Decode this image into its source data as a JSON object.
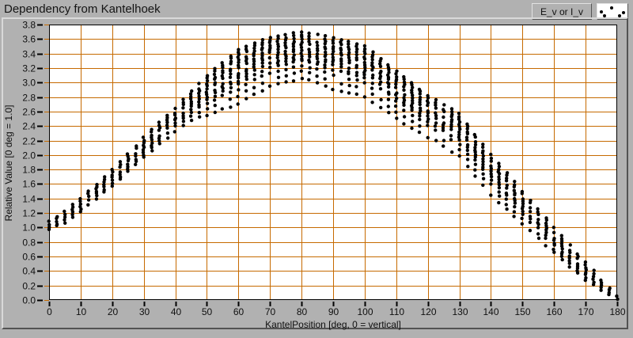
{
  "window": {
    "title": "Dependency from Kantelhoek"
  },
  "legend": {
    "label": "E_v or I_v",
    "glyph": "scatter-dots-sample"
  },
  "colors": {
    "background": "#b1b1b1",
    "plot_background": "#ffffff",
    "grid": "#c66a00",
    "points": "#000000",
    "frame": "#000000",
    "text": "#101010"
  },
  "axes": {
    "x_tick_labels": [
      "0",
      "10",
      "20",
      "30",
      "40",
      "50",
      "60",
      "70",
      "80",
      "90",
      "100",
      "110",
      "120",
      "130",
      "140",
      "150",
      "160",
      "170",
      "180"
    ],
    "y_tick_labels": [
      "0.0",
      "0.2",
      "0.4",
      "0.6",
      "0.8",
      "1.0",
      "1.2",
      "1.4",
      "1.6",
      "1.8",
      "2.0",
      "2.2",
      "2.4",
      "2.6",
      "2.8",
      "3.0",
      "3.2",
      "3.4",
      "3.6",
      "3.8"
    ]
  },
  "chart_data": {
    "type": "scatter",
    "title": "Dependency from Kantelhoek",
    "series_name": "E_v or I_v",
    "xlabel": "KantelPosition [deg, 0 = vertical]",
    "ylabel": "Relative Value [0 deg = 1.0]",
    "xlim": [
      0,
      180
    ],
    "ylim": [
      0.0,
      3.8
    ],
    "x_tick_step": 10,
    "y_tick_step": 0.2,
    "grid": true,
    "legend_position": "top-right",
    "description": "At each tilt angle (2.5 deg steps) a vertical cluster of measured points spans y_min..y_max; dense near the top, sparser toward the bottom.",
    "x": [
      0,
      2.5,
      5,
      7.5,
      10,
      12.5,
      15,
      17.5,
      20,
      22.5,
      25,
      27.5,
      30,
      32.5,
      35,
      37.5,
      40,
      42.5,
      45,
      47.5,
      50,
      52.5,
      55,
      57.5,
      60,
      62.5,
      65,
      67.5,
      70,
      72.5,
      75,
      77.5,
      80,
      82.5,
      85,
      87.5,
      90,
      92.5,
      95,
      97.5,
      100,
      102.5,
      105,
      107.5,
      110,
      112.5,
      115,
      117.5,
      120,
      122.5,
      125,
      127.5,
      130,
      132.5,
      135,
      137.5,
      140,
      142.5,
      145,
      147.5,
      150,
      152.5,
      155,
      157.5,
      160,
      162.5,
      165,
      167.5,
      170,
      172.5,
      175,
      177.5,
      180
    ],
    "y_max": [
      1.08,
      1.15,
      1.22,
      1.31,
      1.4,
      1.5,
      1.6,
      1.7,
      1.8,
      1.91,
      2.02,
      2.13,
      2.24,
      2.35,
      2.45,
      2.55,
      2.65,
      2.77,
      2.88,
      2.99,
      3.1,
      3.19,
      3.28,
      3.37,
      3.45,
      3.5,
      3.55,
      3.59,
      3.62,
      3.64,
      3.66,
      3.68,
      3.7,
      3.68,
      3.66,
      3.64,
      3.61,
      3.59,
      3.56,
      3.53,
      3.5,
      3.42,
      3.33,
      3.25,
      3.16,
      3.08,
      3.0,
      2.91,
      2.82,
      2.76,
      2.7,
      2.64,
      2.57,
      2.43,
      2.28,
      2.14,
      2.0,
      1.88,
      1.75,
      1.63,
      1.5,
      1.38,
      1.25,
      1.13,
      1.0,
      0.88,
      0.76,
      0.64,
      0.52,
      0.4,
      0.28,
      0.17,
      0.06
    ],
    "y_min": [
      0.97,
      1.02,
      1.07,
      1.14,
      1.22,
      1.31,
      1.4,
      1.49,
      1.58,
      1.67,
      1.77,
      1.87,
      1.97,
      2.06,
      2.15,
      2.23,
      2.32,
      2.4,
      2.48,
      2.52,
      2.55,
      2.59,
      2.63,
      2.67,
      2.7,
      2.77,
      2.83,
      2.89,
      2.95,
      2.98,
      3.0,
      3.03,
      3.05,
      3.03,
      3.0,
      2.95,
      2.9,
      2.88,
      2.85,
      2.83,
      2.8,
      2.73,
      2.65,
      2.58,
      2.5,
      2.44,
      2.38,
      2.32,
      2.25,
      2.19,
      2.12,
      2.05,
      1.98,
      1.85,
      1.72,
      1.59,
      1.45,
      1.35,
      1.25,
      1.15,
      1.05,
      0.95,
      0.85,
      0.75,
      0.65,
      0.56,
      0.46,
      0.37,
      0.28,
      0.21,
      0.13,
      0.07,
      0.01
    ]
  }
}
